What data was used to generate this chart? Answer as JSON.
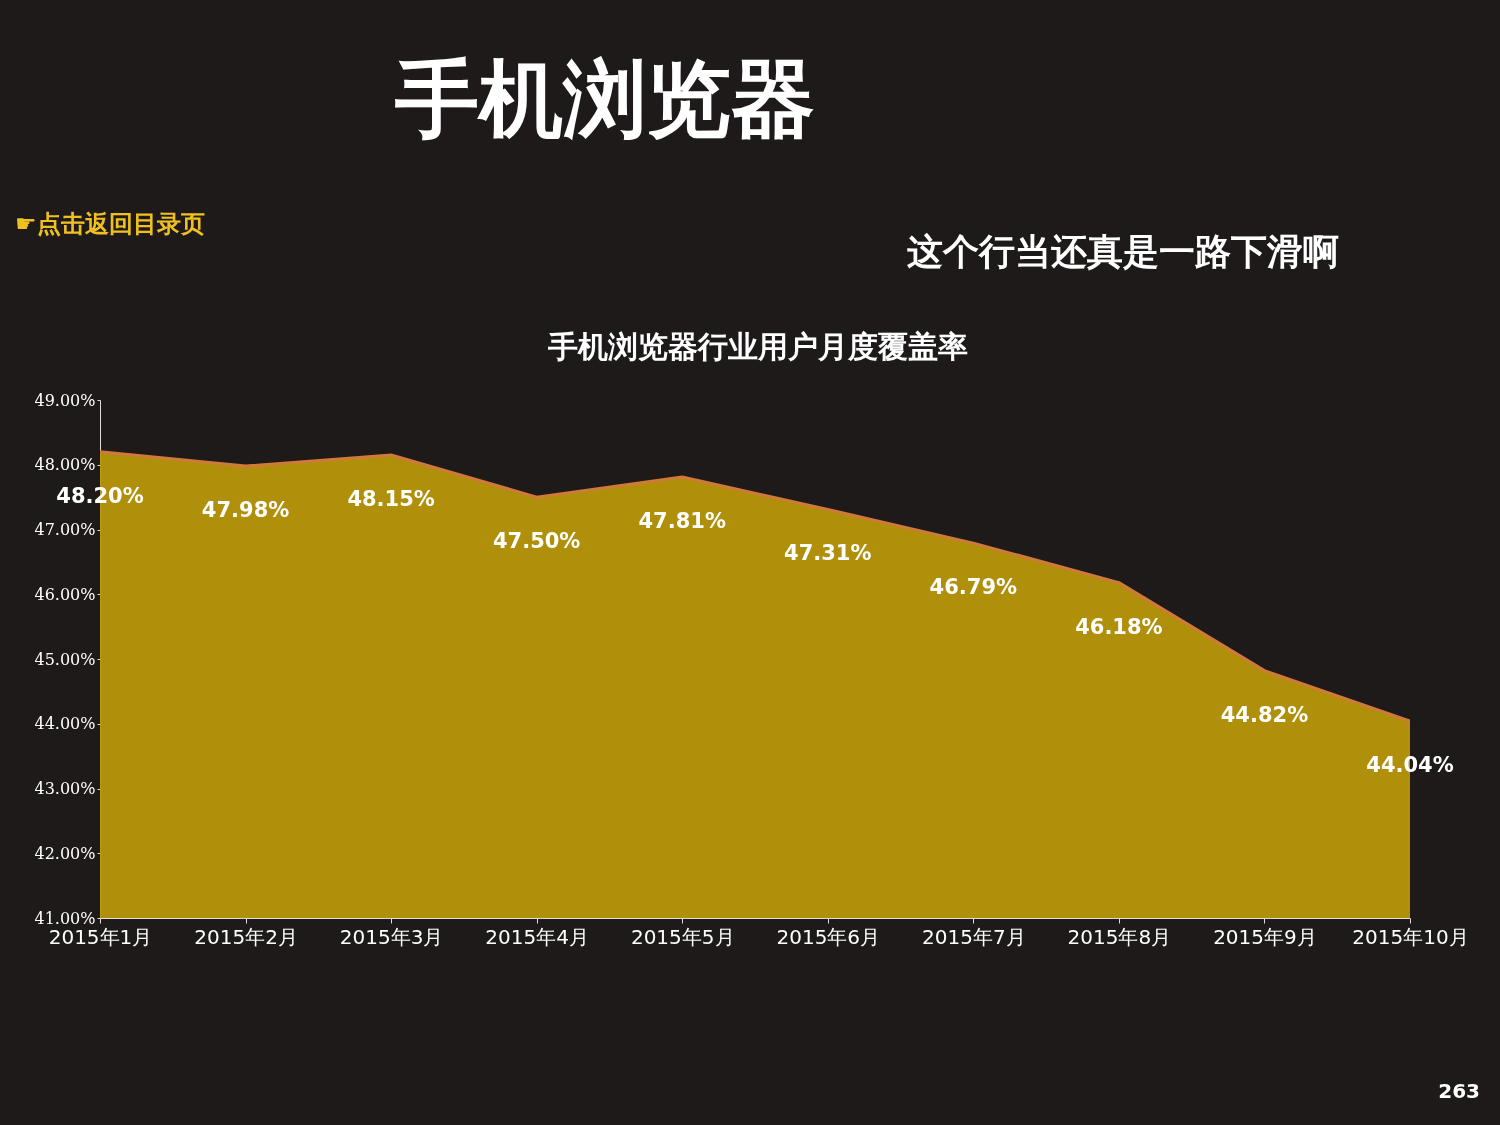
{
  "chart_data": {
    "type": "area",
    "title": "手机浏览器行业用户月度覆盖率",
    "subtitle": "这个行当还真是一路下滑啊",
    "annotations": [
      "手机浏览器",
      "☛点击返回目录页",
      "263"
    ],
    "categories": [
      "2015年1月",
      "2015年2月",
      "2015年3月",
      "2015年4月",
      "2015年5月",
      "2015年6月",
      "2015年7月",
      "2015年8月",
      "2015年9月",
      "2015年10月"
    ],
    "series": [
      {
        "color": "#b8960a",
        "values": [
          48.2,
          47.98,
          48.15,
          47.5,
          47.81,
          47.31,
          46.79,
          46.18,
          44.82,
          44.04
        ],
        "value_labels": [
          "48.20%",
          "47.98%",
          "48.15%",
          "47.50%",
          "47.81%",
          "47.31%",
          "46.79%",
          "46.18%",
          "44.82%",
          "44.04%"
        ]
      }
    ],
    "ylim": [
      41,
      49
    ],
    "yticks": [
      {
        "value": 41,
        "label": "41.00%"
      },
      {
        "value": 42,
        "label": "42.00%"
      },
      {
        "value": 43,
        "label": "43.00%"
      },
      {
        "value": 44,
        "label": "44.00%"
      },
      {
        "value": 45,
        "label": "45.00%"
      },
      {
        "value": 46,
        "label": "46.00%"
      },
      {
        "value": 47,
        "label": "47.00%"
      },
      {
        "value": 48,
        "label": "48.00%"
      },
      {
        "value": 49,
        "label": "49.00%"
      }
    ],
    "grid": false
  }
}
